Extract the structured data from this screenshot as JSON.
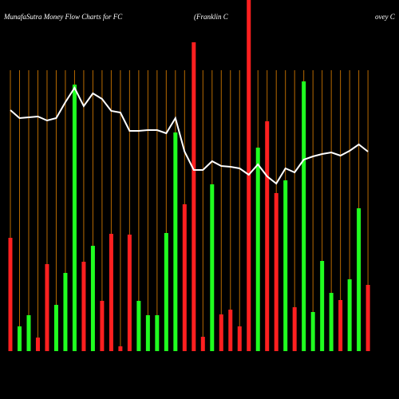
{
  "chart_data": {
    "type": "bar",
    "title": "MunafaSutra  Money Flow  Charts for FC",
    "subtitle": "(Franklin  C",
    "subtitle_tail": "ovey C",
    "ylim": [
      0,
      440
    ],
    "grid": true,
    "grid_color": "#b86a00",
    "series": [
      {
        "values": [
          142,
          31,
          45,
          17,
          109,
          58,
          98,
          334,
          112,
          132,
          63,
          147,
          6,
          146,
          63,
          45,
          45,
          148,
          274,
          184,
          387,
          18,
          209,
          46,
          52,
          31,
          440,
          255,
          288,
          198,
          214,
          55,
          338,
          49,
          113,
          73,
          64,
          90,
          179,
          83
        ],
        "colors": [
          "#ff2020",
          "#20ff20",
          "#20ff20",
          "#ff2020",
          "#ff2020",
          "#20ff20",
          "#20ff20",
          "#20ff20",
          "#ff2020",
          "#20ff20",
          "#ff2020",
          "#ff2020",
          "#ff2020",
          "#ff2020",
          "#20ff20",
          "#20ff20",
          "#20ff20",
          "#20ff20",
          "#20ff20",
          "#ff2020",
          "#ff2020",
          "#ff2020",
          "#20ff20",
          "#ff2020",
          "#ff2020",
          "#ff2020",
          "#ff2020",
          "#20ff20",
          "#ff2020",
          "#ff2020",
          "#20ff20",
          "#ff2020",
          "#20ff20",
          "#20ff20",
          "#20ff20",
          "#20ff20",
          "#ff2020",
          "#20ff20",
          "#20ff20",
          "#ff2020"
        ]
      },
      {
        "type": "line",
        "color": "#ffffff",
        "values": [
          302,
          292,
          293,
          294,
          289,
          292,
          312,
          330,
          307,
          323,
          316,
          301,
          299,
          276,
          276,
          277,
          277,
          273,
          292,
          250,
          227,
          227,
          238,
          232,
          231,
          229,
          221,
          234,
          219,
          210,
          229,
          224,
          240,
          244,
          247,
          249,
          245,
          251,
          259,
          250
        ]
      }
    ]
  }
}
